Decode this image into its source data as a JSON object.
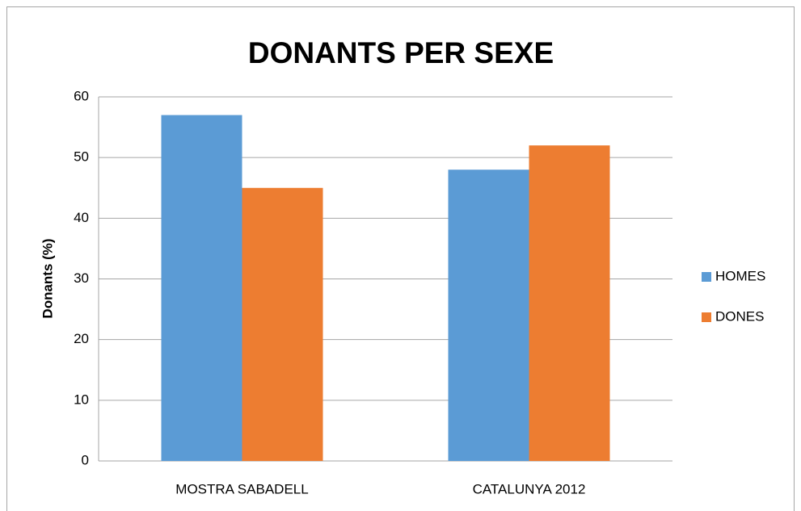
{
  "chart_data": {
    "type": "bar",
    "title": "DONANTS PER SEXE",
    "y_label": "Donants (%)",
    "categories": [
      "MOSTRA SABADELL",
      "CATALUNYA 2012"
    ],
    "series": [
      {
        "name": "HOMES",
        "color": "#5b9bd5",
        "values": [
          57,
          48
        ]
      },
      {
        "name": "DONES",
        "color": "#ed7d31",
        "values": [
          45,
          52
        ]
      }
    ],
    "ylim": [
      0,
      60
    ],
    "yticks": [
      0,
      10,
      20,
      30,
      40,
      50,
      60
    ],
    "grid": true,
    "legend": "right"
  }
}
